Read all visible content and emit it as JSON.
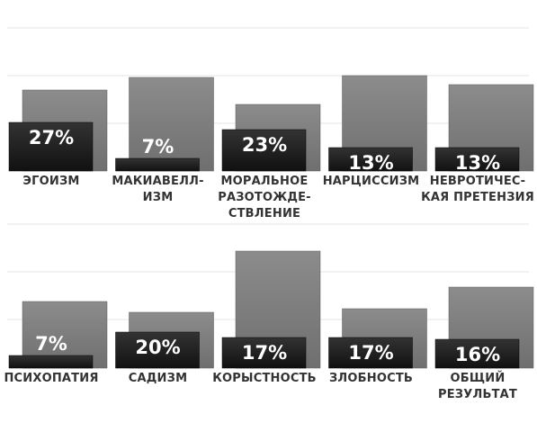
{
  "chart_data": {
    "type": "bar",
    "colors": {
      "back": "#6f6f6f",
      "front": "#111111",
      "grid": "#e6e6e6",
      "label": "#333333"
    },
    "panels": [
      {
        "categories": [
          [
            "ЭГОИЗМ"
          ],
          [
            "МАКИАВЕЛЛ-",
            "ИЗМ"
          ],
          [
            "МОРАЛЬНОЕ",
            "РАЗОТОЖДЕ-",
            "СТВЛЕНИЕ"
          ],
          [
            "НАРЦИССИЗМ"
          ],
          [
            "НЕВРОТИЧЕС-",
            "КАЯ ПРЕТЕНЗИЯ"
          ]
        ],
        "labels": [
          "27%",
          "7%",
          "23%",
          "13%",
          "13%"
        ],
        "front_values": [
          27,
          7,
          23,
          13,
          13
        ],
        "back_values": [
          45,
          52,
          37,
          53,
          48
        ]
      },
      {
        "categories": [
          [
            "ПСИХОПАТИЯ"
          ],
          [
            "САДИЗМ"
          ],
          [
            "КОРЫСТНОСТЬ"
          ],
          [
            "ЗЛОБНОСТЬ"
          ],
          [
            "ОБЩИЙ",
            "РЕЗУЛЬТАТ"
          ]
        ],
        "labels": [
          "7%",
          "20%",
          "17%",
          "17%",
          "16%"
        ],
        "front_values": [
          7,
          20,
          17,
          17,
          16
        ],
        "back_values": [
          37,
          31,
          65,
          33,
          45
        ]
      }
    ]
  }
}
